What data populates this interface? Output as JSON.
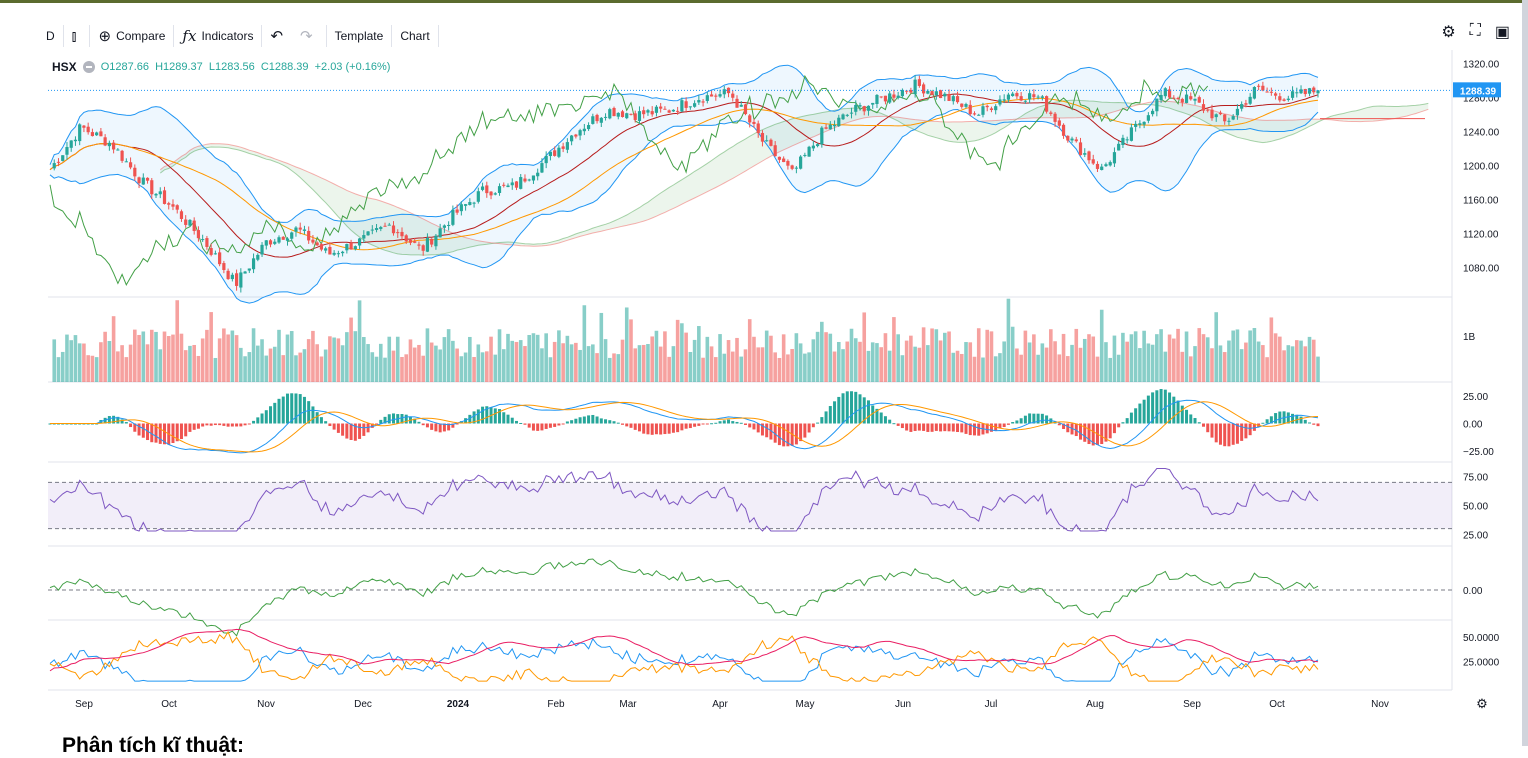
{
  "toolbar": {
    "interval": "D",
    "compare": "Compare",
    "indicators": "Indicators",
    "template": "Template",
    "chart": "Chart"
  },
  "legend": {
    "symbol": "HSX",
    "open": "O1287.66",
    "high": "H1289.37",
    "low": "L1283.56",
    "close": "C1288.39",
    "change": "+2.03 (+0.16%)"
  },
  "heading": "Phân tích kĩ thuật:",
  "colors": {
    "up": "#26a69a",
    "down": "#ef5350",
    "price_tag": "#2196f3",
    "rsi": "#7e57c2",
    "band": "#2196f3"
  },
  "chart_data": [
    {
      "type": "candlestick",
      "pane": "price",
      "last_price": 1288.39,
      "ylim": [
        1045,
        1330
      ],
      "yticks": [
        "1320.00",
        "1280.00",
        "1240.00",
        "1200.00",
        "1160.00",
        "1120.00",
        "1080.00"
      ],
      "price_label": "1288.39",
      "x_months": [
        "Sep",
        "Oct",
        "Nov",
        "Dec",
        "2024",
        "Feb",
        "Mar",
        "Apr",
        "May",
        "Jun",
        "Jul",
        "Aug",
        "Sep",
        "Oct",
        "Nov"
      ],
      "close_path": [
        {
          "m": "Aug",
          "v": 1195
        },
        {
          "m": "Sep",
          "v": 1245
        },
        {
          "m": "Sep",
          "v": 1225
        },
        {
          "m": "Oct",
          "v": 1180
        },
        {
          "m": "Oct",
          "v": 1150
        },
        {
          "m": "Oct",
          "v": 1110
        },
        {
          "m": "Nov",
          "v": 1060
        },
        {
          "m": "Nov",
          "v": 1110
        },
        {
          "m": "Nov",
          "v": 1125
        },
        {
          "m": "Dec",
          "v": 1095
        },
        {
          "m": "Dec",
          "v": 1110
        },
        {
          "m": "Dec",
          "v": 1130
        },
        {
          "m": "2024",
          "v": 1100
        },
        {
          "m": "2024",
          "v": 1140
        },
        {
          "m": "2024",
          "v": 1170
        },
        {
          "m": "Feb",
          "v": 1175
        },
        {
          "m": "Feb",
          "v": 1205
        },
        {
          "m": "Feb",
          "v": 1240
        },
        {
          "m": "Mar",
          "v": 1265
        },
        {
          "m": "Mar",
          "v": 1260
        },
        {
          "m": "Mar",
          "v": 1265
        },
        {
          "m": "Apr",
          "v": 1280
        },
        {
          "m": "Apr",
          "v": 1285
        },
        {
          "m": "Apr",
          "v": 1230
        },
        {
          "m": "May",
          "v": 1190
        },
        {
          "m": "May",
          "v": 1240
        },
        {
          "m": "May",
          "v": 1265
        },
        {
          "m": "Jun",
          "v": 1280
        },
        {
          "m": "Jun",
          "v": 1295
        },
        {
          "m": "Jun",
          "v": 1280
        },
        {
          "m": "Jul",
          "v": 1260
        },
        {
          "m": "Jul",
          "v": 1285
        },
        {
          "m": "Jul",
          "v": 1280
        },
        {
          "m": "Aug",
          "v": 1230
        },
        {
          "m": "Aug",
          "v": 1195
        },
        {
          "m": "Aug",
          "v": 1240
        },
        {
          "m": "Sep",
          "v": 1285
        },
        {
          "m": "Sep",
          "v": 1275
        },
        {
          "m": "Sep",
          "v": 1250
        },
        {
          "m": "Oct",
          "v": 1290
        },
        {
          "m": "Oct",
          "v": 1280
        },
        {
          "m": "Oct",
          "v": 1288
        }
      ]
    },
    {
      "type": "bar",
      "pane": "volume",
      "ytick": "1B"
    },
    {
      "type": "bar+line",
      "pane": "macd",
      "ylim": [
        -35,
        35
      ],
      "yticks": [
        "25.00",
        "0.00",
        "−25.00"
      ]
    },
    {
      "type": "line",
      "pane": "rsi",
      "ylim": [
        15,
        85
      ],
      "yticks": [
        "75.00",
        "50.00",
        "25.00"
      ],
      "band": [
        30,
        70
      ]
    },
    {
      "type": "line",
      "pane": "oscillator",
      "ytick": "0.00"
    },
    {
      "type": "line",
      "pane": "dmi",
      "yticks": [
        "50.0000",
        "25.0000"
      ]
    }
  ]
}
